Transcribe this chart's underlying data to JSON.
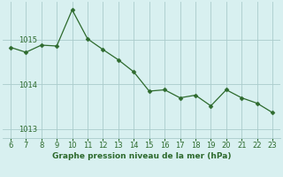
{
  "x": [
    6,
    7,
    8,
    9,
    10,
    11,
    12,
    13,
    14,
    15,
    16,
    17,
    18,
    19,
    20,
    21,
    22,
    23
  ],
  "y": [
    1014.83,
    1014.72,
    1014.88,
    1014.86,
    1015.67,
    1015.02,
    1014.78,
    1014.55,
    1014.28,
    1013.85,
    1013.88,
    1013.7,
    1013.76,
    1013.52,
    1013.88,
    1013.7,
    1013.58,
    1013.37
  ],
  "line_color": "#2d6a2d",
  "marker_color": "#2d6a2d",
  "bg_color": "#d8f0f0",
  "grid_color": "#aacccc",
  "axis_label_color": "#2d6a2d",
  "xlabel": "Graphe pression niveau de la mer (hPa)",
  "xlim": [
    5.5,
    23.5
  ],
  "ylim": [
    1012.8,
    1015.85
  ],
  "yticks": [
    1013,
    1014,
    1015
  ],
  "xticks": [
    6,
    7,
    8,
    9,
    10,
    11,
    12,
    13,
    14,
    15,
    16,
    17,
    18,
    19,
    20,
    21,
    22,
    23
  ]
}
